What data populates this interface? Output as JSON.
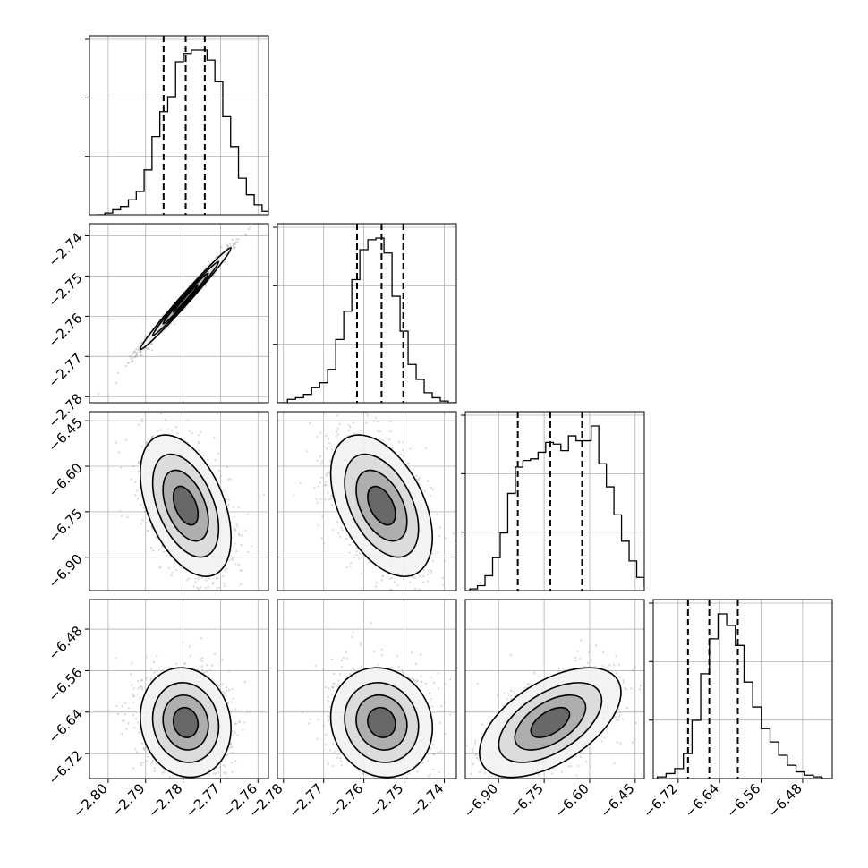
{
  "chart_data": {
    "type": "corner",
    "parameters": [
      {
        "range": [
          -2.805,
          -2.7572
        ],
        "ticks": [
          -2.8,
          -2.79,
          -2.78,
          -2.77,
          -2.76
        ],
        "quantiles": [
          -2.7852,
          -2.7793,
          -2.7742
        ]
      },
      {
        "range": [
          -2.7815,
          -2.737
        ],
        "ticks": [
          -2.78,
          -2.77,
          -2.76,
          -2.75,
          -2.74
        ],
        "quantiles": [
          -2.7617,
          -2.7556,
          -2.7502
        ]
      },
      {
        "range": [
          -7.01,
          -6.42
        ],
        "ticks": [
          -6.9,
          -6.75,
          -6.6,
          -6.45
        ],
        "quantiles": [
          -6.837,
          -6.73,
          -6.625
        ]
      },
      {
        "range": [
          -6.768,
          -6.423
        ],
        "ticks": [
          -6.72,
          -6.64,
          -6.56,
          -6.48
        ],
        "quantiles": [
          -6.701,
          -6.66,
          -6.605
        ]
      }
    ],
    "histograms": [
      {
        "bins_from": -2.803,
        "bin_width": 0.0021,
        "counts": [
          0,
          1,
          3,
          5,
          9,
          14,
          27,
          47,
          62,
          71,
          92,
          97,
          99,
          99,
          93,
          80,
          59,
          41,
          22,
          12,
          6,
          2,
          1,
          0
        ]
      },
      {
        "bins_from": -2.781,
        "bin_width": 0.002,
        "counts": [
          0,
          2,
          3,
          5,
          9,
          12,
          20,
          38,
          55,
          74,
          92,
          98,
          99,
          90,
          64,
          43,
          23,
          14,
          6,
          3,
          1,
          0
        ]
      },
      {
        "bins_from": -6.995,
        "bin_width": 0.025,
        "counts": [
          1,
          3,
          9,
          20,
          35,
          59,
          75,
          79,
          80,
          84,
          90,
          89,
          85,
          94,
          91,
          91,
          100,
          77,
          63,
          46,
          30,
          18,
          8,
          3,
          1,
          1
        ]
      },
      {
        "bins_from": -6.76,
        "bin_width": 0.0167,
        "counts": [
          1,
          3,
          6,
          15,
          35,
          63,
          84,
          99,
          92,
          80,
          58,
          43,
          30,
          22,
          14,
          8,
          4,
          2,
          1,
          0
        ]
      }
    ],
    "pairs": [
      {
        "x_param": 0,
        "y_param": 1,
        "correlation": 0.99
      },
      {
        "x_param": 0,
        "y_param": 2,
        "correlation": -0.45
      },
      {
        "x_param": 1,
        "y_param": 2,
        "correlation": -0.45
      },
      {
        "x_param": 0,
        "y_param": 3,
        "correlation": -0.1
      },
      {
        "x_param": 1,
        "y_param": 3,
        "correlation": -0.1
      },
      {
        "x_param": 2,
        "y_param": 3,
        "correlation": 0.55
      }
    ],
    "grid": true
  }
}
